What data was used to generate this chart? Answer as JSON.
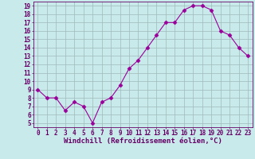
{
  "x": [
    0,
    1,
    2,
    3,
    4,
    5,
    6,
    7,
    8,
    9,
    10,
    11,
    12,
    13,
    14,
    15,
    16,
    17,
    18,
    19,
    20,
    21,
    22,
    23
  ],
  "y": [
    9,
    8,
    8,
    6.5,
    7.5,
    7,
    5,
    7.5,
    8,
    9.5,
    11.5,
    12.5,
    14,
    15.5,
    17,
    17,
    18.5,
    19,
    19,
    18.5,
    16,
    15.5,
    14,
    13
  ],
  "line_color": "#990099",
  "marker": "D",
  "markersize": 2.5,
  "linewidth": 0.8,
  "bg_color": "#c8eaea",
  "grid_color": "#a0b8b8",
  "xlabel": "Windchill (Refroidissement éolien,°C)",
  "xlabel_color": "#660066",
  "tick_color": "#660066",
  "spine_color": "#660066",
  "xlim": [
    -0.5,
    23.5
  ],
  "ylim": [
    4.5,
    19.5
  ],
  "yticks": [
    5,
    6,
    7,
    8,
    9,
    10,
    11,
    12,
    13,
    14,
    15,
    16,
    17,
    18,
    19
  ],
  "xticks": [
    0,
    1,
    2,
    3,
    4,
    5,
    6,
    7,
    8,
    9,
    10,
    11,
    12,
    13,
    14,
    15,
    16,
    17,
    18,
    19,
    20,
    21,
    22,
    23
  ],
  "xlabel_fontsize": 6.5,
  "tick_fontsize": 5.5
}
